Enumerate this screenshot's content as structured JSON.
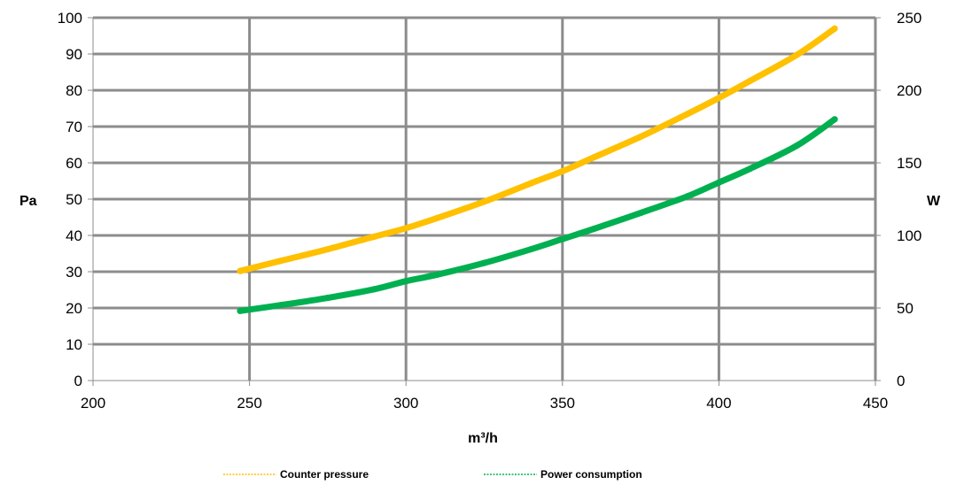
{
  "chart_data": {
    "type": "line",
    "title": "",
    "xlabel": "m³/h",
    "ylabel_left": "Pa",
    "ylabel_right": "W",
    "xlim": [
      200,
      450
    ],
    "ylim_left": [
      0,
      100
    ],
    "ylim_right": [
      0,
      250
    ],
    "x_ticks": [
      "200",
      "250",
      "300",
      "350",
      "400",
      "450"
    ],
    "y_left_ticks": [
      "0",
      "10",
      "20",
      "30",
      "40",
      "50",
      "60",
      "70",
      "80",
      "90",
      "100"
    ],
    "y_right_ticks": [
      "0",
      "50",
      "100",
      "150",
      "200",
      "250"
    ],
    "grid": true,
    "legend_position": "bottom",
    "series": [
      {
        "name": "Counter pressure",
        "axis": "left",
        "color": "#FFC000",
        "x": [
          247,
          260,
          275,
          290,
          300,
          310,
          325,
          340,
          350,
          360,
          375,
          390,
          400,
          410,
          425,
          437
        ],
        "y": [
          30.2,
          33.0,
          36.2,
          39.7,
          42.0,
          44.8,
          49.3,
          54.4,
          57.7,
          61.5,
          67.2,
          73.5,
          77.9,
          82.6,
          89.8,
          97.0
        ]
      },
      {
        "name": "Power consumption",
        "axis": "right",
        "color": "#00B050",
        "x": [
          247,
          260,
          275,
          290,
          300,
          310,
          325,
          340,
          350,
          360,
          375,
          390,
          400,
          410,
          425,
          437
        ],
        "y": [
          48.0,
          52.0,
          57.0,
          63.0,
          68.5,
          73.0,
          81.0,
          90.5,
          97.5,
          104.5,
          115.5,
          127.0,
          136.5,
          146.0,
          162.0,
          180.0
        ]
      }
    ]
  }
}
